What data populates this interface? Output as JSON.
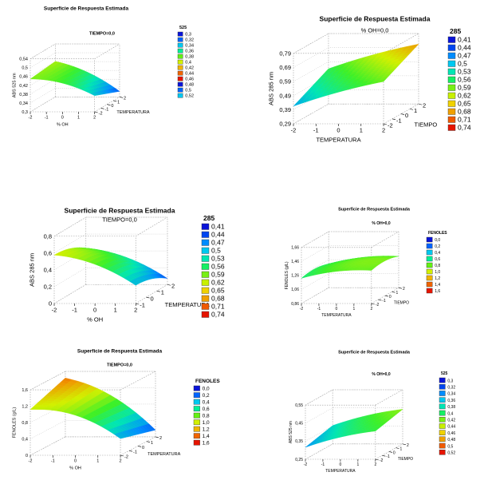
{
  "chart_data": [
    {
      "type": "surface3d",
      "title": "Superficie de Respuesta Estimada",
      "subtitle": "TIEMPO=0,0",
      "zlabel": "ABS 525 nm",
      "xlabel": "% OH",
      "ylabel": "TEMPERATURA",
      "zticks": [
        "0,3",
        "0,34",
        "0,38",
        "0,42",
        "0,46",
        "0,5",
        "0,54"
      ],
      "xticks": [
        "-2",
        "-1",
        "0",
        "1",
        "2"
      ],
      "yticks": [
        "-2",
        "-1",
        "0",
        "1",
        "2"
      ],
      "legend": {
        "title": "525",
        "labels": [
          "0,3",
          "0,32",
          "0,34",
          "0,36",
          "0,38",
          "0,4",
          "0,42",
          "0,44",
          "0,46",
          "0,48",
          "0,5",
          "0,52"
        ]
      }
    },
    {
      "type": "surface3d",
      "title": "Superficie de Respuesta Estimada",
      "subtitle": "% OH=0,0",
      "zlabel": "ABS 285 nm",
      "xlabel": "TEMPERATURA",
      "ylabel": "TIEMPO",
      "zticks": [
        "0,29",
        "0,39",
        "0,49",
        "0,59",
        "0,69",
        "0,79"
      ],
      "xticks": [
        "-2",
        "-1",
        "0",
        "1",
        "2"
      ],
      "yticks": [
        "-2",
        "-1",
        "0",
        "1",
        "2"
      ],
      "legend": {
        "title": "285",
        "labels": [
          "0,41",
          "0,44",
          "0,47",
          "0,5",
          "0,53",
          "0,56",
          "0,59",
          "0,62",
          "0,65",
          "0,68",
          "0,71",
          "0,74"
        ]
      }
    },
    {
      "type": "surface3d",
      "title": "Superficie de Respuesta Estimada",
      "subtitle": "TIEMPO=0,0",
      "zlabel": "ABS 285 nm",
      "xlabel": "% OH",
      "ylabel": "TEMPERATURA",
      "zticks": [
        "0",
        "0,2",
        "0,4",
        "0,6",
        "0,8"
      ],
      "xticks": [
        "-2",
        "-1",
        "0",
        "1",
        "2"
      ],
      "yticks": [
        "-1",
        "0",
        "1",
        "2"
      ],
      "legend": {
        "title": "285",
        "labels": [
          "0,41",
          "0,44",
          "0,47",
          "0,5",
          "0,53",
          "0,56",
          "0,59",
          "0,62",
          "0,65",
          "0,68",
          "0,71",
          "0,74"
        ]
      }
    },
    {
      "type": "surface3d",
      "title": "Superficie de Respuesta Estimada",
      "subtitle": "% OH=0,0",
      "zlabel": "FENOLES (g/L)",
      "xlabel": "TEMPERATURA",
      "ylabel": "TIEMPO",
      "zticks": [
        "0,86",
        "1,06",
        "1,26",
        "1,46",
        "1,66"
      ],
      "xticks": [
        "-2",
        "-1",
        "0",
        "1",
        "2"
      ],
      "yticks": [
        "-2",
        "-1",
        "0",
        "1",
        "2"
      ],
      "legend": {
        "title": "FENOLES",
        "labels": [
          "0,0",
          "0,2",
          "0,4",
          "0,6",
          "0,8",
          "1,0",
          "1,2",
          "1,4",
          "1,6"
        ]
      }
    },
    {
      "type": "surface3d",
      "title": "Superficie de Respuesta Estimada",
      "subtitle": "TIEMPO=0,0",
      "zlabel": "FENOLES (g/L)",
      "xlabel": "% OH",
      "ylabel": "TEMPERATURA",
      "zticks": [
        "0",
        "0,4",
        "0,8",
        "1,2",
        "1,6"
      ],
      "xticks": [
        "-2",
        "-1",
        "0",
        "1",
        "2"
      ],
      "yticks": [
        "-2",
        "-1",
        "0",
        "1",
        "2"
      ],
      "legend": {
        "title": "FENOLES",
        "labels": [
          "0,0",
          "0,2",
          "0,4",
          "0,6",
          "0,8",
          "1,0",
          "1,2",
          "1,4",
          "1,6"
        ]
      }
    },
    {
      "type": "surface3d",
      "title": "Superficie de Respuesta Estimada",
      "subtitle": "% OH=0,0",
      "zlabel": "ABS 525 nm",
      "xlabel": "TEMPERATURA",
      "ylabel": "TIEMPO",
      "zticks": [
        "0,25",
        "0,35",
        "0,45",
        "0,55"
      ],
      "xticks": [
        "-2",
        "-1",
        "0",
        "1",
        "2"
      ],
      "yticks": [
        "-2",
        "-1",
        "0",
        "1",
        "2"
      ],
      "legend": {
        "title": "525",
        "labels": [
          "0,3",
          "0,32",
          "0,34",
          "0,36",
          "0,38",
          "0,4",
          "0,42",
          "0,44",
          "0,46",
          "0,48",
          "0,5",
          "0,52"
        ]
      }
    }
  ]
}
